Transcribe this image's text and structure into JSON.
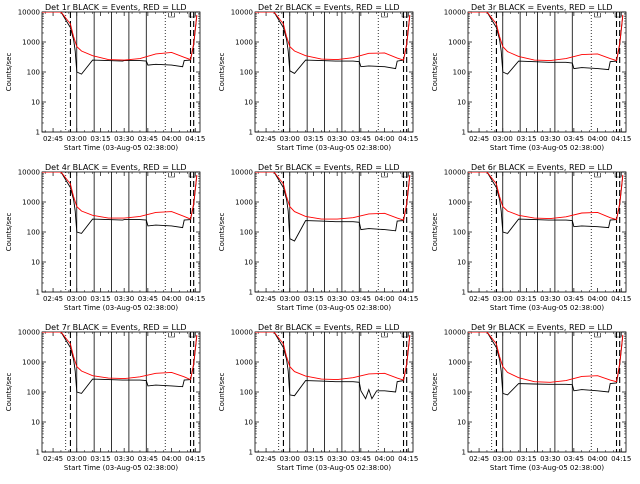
{
  "chart_data": {
    "type": "line",
    "layout": "3x3 grid",
    "ylim": [
      1,
      10000
    ],
    "yscale": "log",
    "y_ticks": [
      1,
      10,
      100,
      1000,
      10000
    ],
    "y_tick_labels": [
      "1",
      "10",
      "100",
      "1000",
      "10000"
    ],
    "xlim": [
      "02:38",
      "04:18"
    ],
    "x_ticks": [
      "02:45",
      "03:00",
      "03:15",
      "03:30",
      "03:45",
      "04:00",
      "04:15"
    ],
    "ylabel": "Counts/sec",
    "xlabel": "Start Time (03-Aug-05 02:38:00)",
    "grid": false,
    "colors": {
      "events": "#000000",
      "lld": "#ff0000"
    },
    "panels": [
      {
        "title": "Det 1r BLACK = Events, RED = LLD",
        "series": [
          {
            "x": [
              "02:38",
              "02:50",
              "02:56",
              "02:58",
              "03:00",
              "03:03",
              "03:10",
              "03:20",
              "03:30",
              "03:40",
              "03:50",
              "04:00",
              "04:08",
              "04:12",
              "04:14",
              "04:16"
            ],
            "y": [
              10000,
              10000,
              4000,
              1500,
              700,
              500,
              350,
              260,
              250,
              280,
              400,
              450,
              310,
              260,
              900,
              8000
            ]
          },
          {
            "x": [
              "02:38",
              "02:50",
              "02:56",
              "02:58",
              "02:59",
              "03:00",
              "03:03",
              "03:10",
              "03:20",
              "03:29",
              "03:30",
              "03:40",
              "03:44",
              "03:45",
              "03:50",
              "04:00",
              "04:07",
              "04:08",
              "04:12",
              "04:14",
              "04:16"
            ],
            "y": [
              10000,
              10000,
              3000,
              1200,
              500,
              100,
              85,
              250,
              240,
              230,
              240,
              240,
              230,
              170,
              180,
              170,
              150,
              240,
              250,
              800,
              7500
            ]
          }
        ]
      },
      {
        "title": "Det 2r BLACK = Events, RED = LLD",
        "series": [
          {
            "x": [
              "02:38",
              "02:50",
              "02:56",
              "02:58",
              "03:00",
              "03:03",
              "03:10",
              "03:20",
              "03:30",
              "03:40",
              "03:50",
              "04:00",
              "04:08",
              "04:12",
              "04:14",
              "04:16"
            ],
            "y": [
              10000,
              10000,
              4000,
              1500,
              700,
              500,
              350,
              270,
              260,
              300,
              420,
              430,
              290,
              250,
              900,
              8000
            ]
          },
          {
            "x": [
              "02:38",
              "02:50",
              "02:56",
              "02:58",
              "02:59",
              "03:00",
              "03:03",
              "03:10",
              "03:20",
              "03:29",
              "03:30",
              "03:40",
              "03:44",
              "03:45",
              "03:50",
              "04:00",
              "04:07",
              "04:08",
              "04:12",
              "04:14",
              "04:16"
            ],
            "y": [
              10000,
              10000,
              3000,
              1200,
              500,
              110,
              90,
              250,
              240,
              230,
              230,
              230,
              220,
              150,
              160,
              150,
              130,
              230,
              250,
              800,
              7500
            ]
          }
        ]
      },
      {
        "title": "Det 3r BLACK = Events, RED = LLD",
        "series": [
          {
            "x": [
              "02:38",
              "02:50",
              "02:56",
              "02:58",
              "03:00",
              "03:03",
              "03:10",
              "03:20",
              "03:30",
              "03:40",
              "03:50",
              "04:00",
              "04:08",
              "04:12",
              "04:14",
              "04:16"
            ],
            "y": [
              10000,
              10000,
              4000,
              1500,
              700,
              480,
              330,
              250,
              240,
              280,
              380,
              400,
              280,
              240,
              900,
              8000
            ]
          },
          {
            "x": [
              "02:38",
              "02:50",
              "02:56",
              "02:58",
              "02:59",
              "03:00",
              "03:03",
              "03:10",
              "03:20",
              "03:29",
              "03:30",
              "03:40",
              "03:44",
              "03:45",
              "03:50",
              "04:00",
              "04:07",
              "04:08",
              "04:12",
              "04:14",
              "04:16"
            ],
            "y": [
              10000,
              10000,
              3000,
              1200,
              500,
              100,
              85,
              230,
              220,
              210,
              210,
              210,
              200,
              130,
              140,
              130,
              120,
              220,
              230,
              800,
              7500
            ]
          }
        ]
      },
      {
        "title": "Det 4r BLACK = Events, RED = LLD",
        "series": [
          {
            "x": [
              "02:38",
              "02:50",
              "02:56",
              "02:58",
              "03:00",
              "03:03",
              "03:10",
              "03:20",
              "03:30",
              "03:40",
              "03:50",
              "04:00",
              "04:08",
              "04:12",
              "04:14",
              "04:16"
            ],
            "y": [
              10000,
              10000,
              4000,
              1500,
              700,
              500,
              360,
              290,
              290,
              330,
              450,
              480,
              330,
              270,
              900,
              8000
            ]
          },
          {
            "x": [
              "02:38",
              "02:50",
              "02:56",
              "02:58",
              "02:59",
              "03:00",
              "03:03",
              "03:10",
              "03:20",
              "03:29",
              "03:30",
              "03:40",
              "03:44",
              "03:45",
              "03:50",
              "04:00",
              "04:07",
              "04:08",
              "04:12",
              "04:14",
              "04:16"
            ],
            "y": [
              10000,
              10000,
              3000,
              1200,
              500,
              100,
              90,
              270,
              260,
              250,
              260,
              260,
              250,
              160,
              170,
              160,
              140,
              250,
              260,
              800,
              7500
            ]
          }
        ]
      },
      {
        "title": "Det 5r BLACK = Events, RED = LLD",
        "series": [
          {
            "x": [
              "02:38",
              "02:50",
              "02:56",
              "02:58",
              "03:00",
              "03:03",
              "03:10",
              "03:20",
              "03:30",
              "03:40",
              "03:50",
              "04:00",
              "04:08",
              "04:12",
              "04:14",
              "04:16"
            ],
            "y": [
              10000,
              10000,
              4000,
              1500,
              700,
              480,
              330,
              270,
              270,
              300,
              400,
              420,
              290,
              250,
              900,
              8000
            ]
          },
          {
            "x": [
              "02:38",
              "02:50",
              "02:56",
              "02:58",
              "02:59",
              "03:00",
              "03:03",
              "03:10",
              "03:20",
              "03:29",
              "03:30",
              "03:40",
              "03:44",
              "03:45",
              "03:50",
              "04:00",
              "04:07",
              "04:08",
              "04:12",
              "04:14",
              "04:16"
            ],
            "y": [
              10000,
              10000,
              3000,
              1200,
              500,
              60,
              50,
              240,
              230,
              220,
              220,
              220,
              210,
              120,
              130,
              120,
              110,
              230,
              240,
              800,
              7500
            ]
          }
        ]
      },
      {
        "title": "Det 6r BLACK = Events, RED = LLD",
        "series": [
          {
            "x": [
              "02:38",
              "02:50",
              "02:56",
              "02:58",
              "03:00",
              "03:03",
              "03:10",
              "03:20",
              "03:30",
              "03:40",
              "03:50",
              "04:00",
              "04:08",
              "04:12",
              "04:14",
              "04:16"
            ],
            "y": [
              10000,
              10000,
              4000,
              1500,
              700,
              500,
              360,
              290,
              280,
              320,
              430,
              450,
              300,
              260,
              900,
              8000
            ]
          },
          {
            "x": [
              "02:38",
              "02:50",
              "02:56",
              "02:58",
              "02:59",
              "03:00",
              "03:03",
              "03:10",
              "03:20",
              "03:29",
              "03:30",
              "03:40",
              "03:44",
              "03:45",
              "03:50",
              "04:00",
              "04:07",
              "04:08",
              "04:12",
              "04:14",
              "04:16"
            ],
            "y": [
              10000,
              10000,
              3000,
              1200,
              500,
              100,
              90,
              270,
              260,
              250,
              250,
              250,
              240,
              150,
              160,
              150,
              140,
              250,
              260,
              800,
              7500
            ]
          }
        ]
      },
      {
        "title": "Det 7r BLACK = Events, RED = LLD",
        "series": [
          {
            "x": [
              "02:38",
              "02:50",
              "02:56",
              "02:58",
              "03:00",
              "03:03",
              "03:10",
              "03:20",
              "03:30",
              "03:40",
              "03:50",
              "04:00",
              "04:08",
              "04:12",
              "04:14",
              "04:16"
            ],
            "y": [
              10000,
              10000,
              4000,
              1500,
              700,
              500,
              350,
              290,
              280,
              320,
              420,
              450,
              320,
              260,
              900,
              8000
            ]
          },
          {
            "x": [
              "02:38",
              "02:50",
              "02:56",
              "02:58",
              "02:59",
              "03:00",
              "03:03",
              "03:10",
              "03:20",
              "03:29",
              "03:30",
              "03:40",
              "03:44",
              "03:45",
              "03:50",
              "04:00",
              "04:07",
              "04:08",
              "04:12",
              "04:14",
              "04:16"
            ],
            "y": [
              10000,
              10000,
              3000,
              1200,
              500,
              100,
              90,
              270,
              260,
              250,
              250,
              250,
              240,
              160,
              170,
              160,
              150,
              250,
              260,
              800,
              7500
            ]
          }
        ]
      },
      {
        "title": "Det 8r BLACK = Events, RED = LLD",
        "series": [
          {
            "x": [
              "02:38",
              "02:50",
              "02:56",
              "02:58",
              "03:00",
              "03:03",
              "03:10",
              "03:20",
              "03:30",
              "03:40",
              "03:50",
              "04:00",
              "04:08",
              "04:12",
              "04:14",
              "04:16"
            ],
            "y": [
              10000,
              10000,
              4000,
              1500,
              700,
              480,
              340,
              270,
              260,
              300,
              400,
              420,
              290,
              250,
              900,
              8000
            ]
          },
          {
            "x": [
              "02:38",
              "02:50",
              "02:56",
              "02:58",
              "02:59",
              "03:00",
              "03:03",
              "03:10",
              "03:20",
              "03:29",
              "03:30",
              "03:40",
              "03:44",
              "03:45",
              "03:48",
              "03:50",
              "03:52",
              "03:55",
              "04:00",
              "04:07",
              "04:08",
              "04:12",
              "04:14",
              "04:16"
            ],
            "y": [
              10000,
              10000,
              3000,
              1200,
              500,
              80,
              75,
              240,
              230,
              220,
              220,
              220,
              210,
              110,
              60,
              120,
              60,
              110,
              110,
              100,
              220,
              240,
              800,
              7500
            ]
          }
        ]
      },
      {
        "title": "Det 9r BLACK = Events, RED = LLD",
        "series": [
          {
            "x": [
              "02:38",
              "02:50",
              "02:56",
              "02:58",
              "03:00",
              "03:03",
              "03:10",
              "03:20",
              "03:30",
              "03:40",
              "03:50",
              "04:00",
              "04:08",
              "04:12",
              "04:14",
              "04:16"
            ],
            "y": [
              10000,
              10000,
              4000,
              1500,
              700,
              450,
              300,
              220,
              210,
              240,
              330,
              350,
              250,
              220,
              900,
              8000
            ]
          },
          {
            "x": [
              "02:38",
              "02:50",
              "02:56",
              "02:58",
              "02:59",
              "03:00",
              "03:03",
              "03:10",
              "03:20",
              "03:29",
              "03:30",
              "03:40",
              "03:44",
              "03:45",
              "03:50",
              "04:00",
              "04:07",
              "04:08",
              "04:12",
              "04:14",
              "04:16"
            ],
            "y": [
              10000,
              10000,
              3000,
              1200,
              500,
              90,
              80,
              190,
              185,
              180,
              180,
              180,
              175,
              110,
              120,
              110,
              100,
              190,
              200,
              800,
              7500
            ]
          }
        ]
      }
    ],
    "vlines": [
      {
        "time": "02:53",
        "style": "dotted"
      },
      {
        "time": "02:56",
        "style": "dashed"
      },
      {
        "time": "03:00",
        "style": "solid"
      },
      {
        "time": "03:11",
        "style": "solid"
      },
      {
        "time": "03:22",
        "style": "solid"
      },
      {
        "time": "03:33",
        "style": "solid"
      },
      {
        "time": "03:44",
        "style": "solid"
      },
      {
        "time": "03:56",
        "style": "dotted"
      },
      {
        "time": "04:12",
        "style": "dashed"
      },
      {
        "time": "04:14",
        "style": "dashed"
      }
    ]
  }
}
